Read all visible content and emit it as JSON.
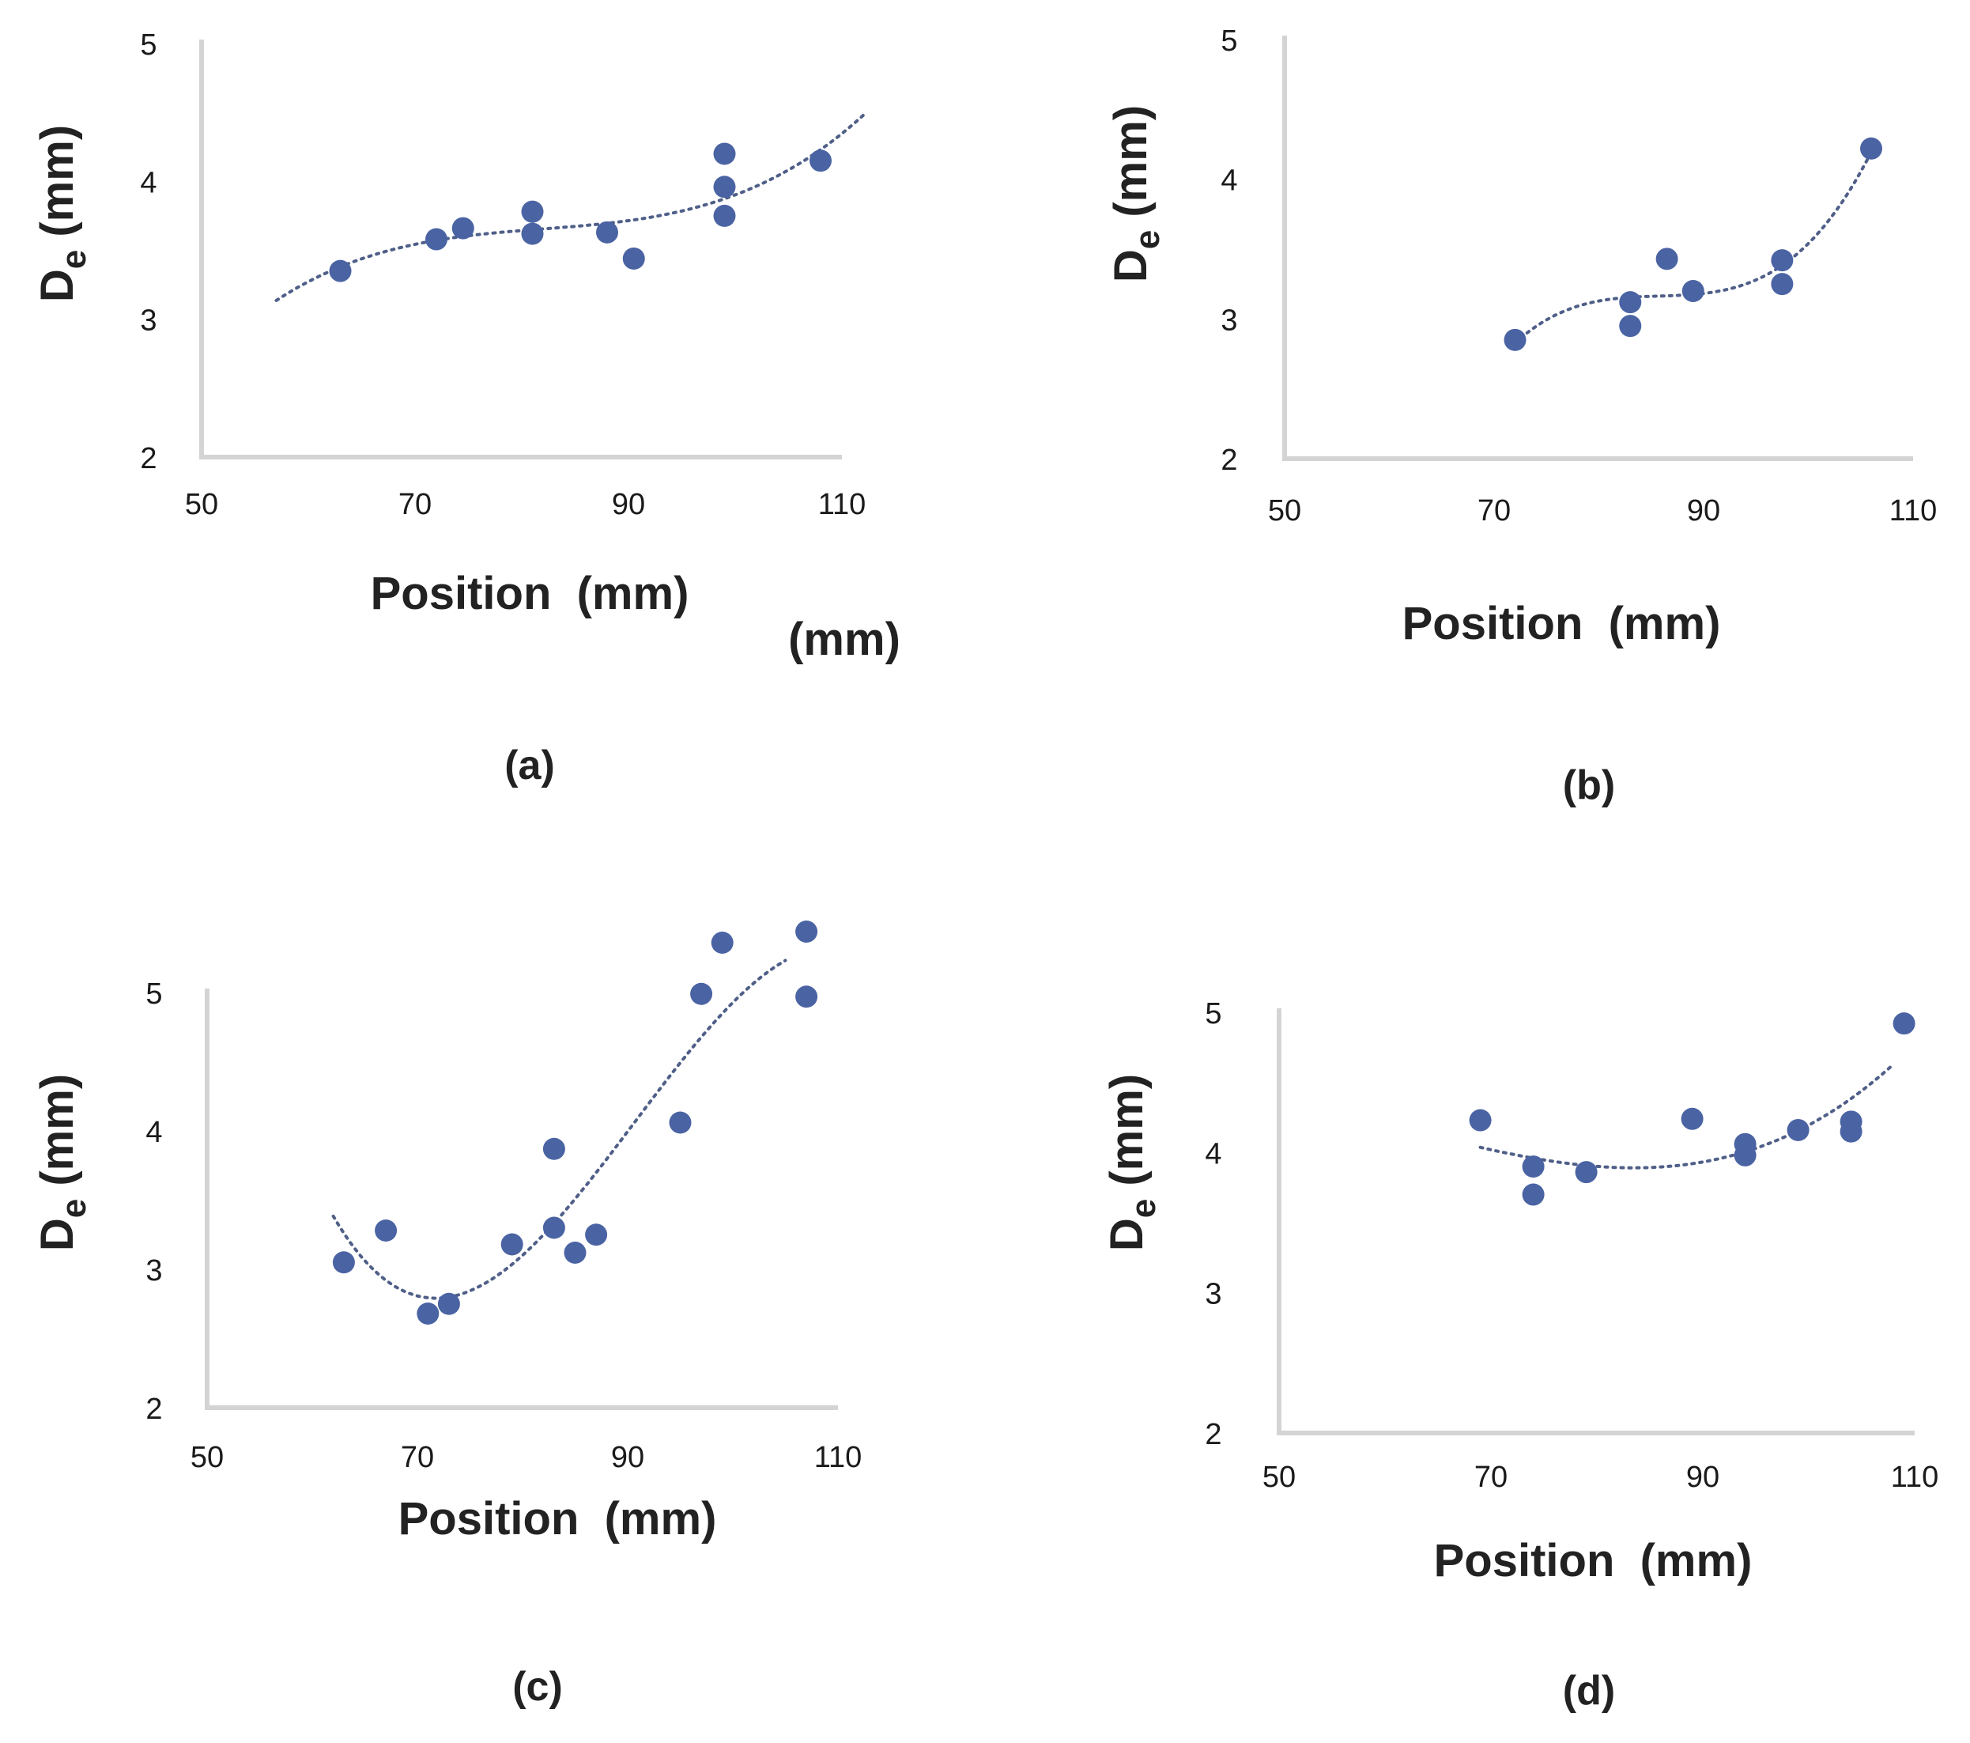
{
  "extra_label": "(mm)",
  "chart_data": [
    {
      "type": "scatter",
      "panel_label": "(a)",
      "xlabel": "Position  (mm)",
      "ylabel_main": "D",
      "ylabel_sub": "e",
      "ylabel_unit": " (mm)",
      "xlim": [
        50,
        110
      ],
      "ylim": [
        2,
        5
      ],
      "xticks": [
        50,
        70,
        90,
        110
      ],
      "yticks": [
        2,
        3,
        4,
        5
      ],
      "points": [
        [
          63,
          3.35
        ],
        [
          72,
          3.58
        ],
        [
          74.5,
          3.66
        ],
        [
          81,
          3.78
        ],
        [
          81,
          3.62
        ],
        [
          88,
          3.63
        ],
        [
          90.5,
          3.44
        ],
        [
          99,
          4.2
        ],
        [
          99,
          3.96
        ],
        [
          99,
          3.75
        ],
        [
          108,
          4.15
        ]
      ],
      "trend": {
        "kind": "polynomial",
        "x_range": [
          57,
          112
        ]
      }
    },
    {
      "type": "scatter",
      "panel_label": "(b)",
      "xlabel": "Position  (mm)",
      "ylabel_main": "D",
      "ylabel_sub": "e",
      "ylabel_unit": " (mm)",
      "xlim": [
        50,
        110
      ],
      "ylim": [
        2,
        5
      ],
      "xticks": [
        50,
        70,
        90,
        110
      ],
      "yticks": [
        2,
        3,
        4,
        5
      ],
      "points": [
        [
          72,
          2.85
        ],
        [
          83,
          3.12
        ],
        [
          83,
          2.95
        ],
        [
          86.5,
          3.43
        ],
        [
          89,
          3.2
        ],
        [
          97.5,
          3.42
        ],
        [
          97.5,
          3.25
        ],
        [
          106,
          4.22
        ]
      ],
      "trend": {
        "kind": "polynomial",
        "x_range": [
          72,
          106
        ]
      }
    },
    {
      "type": "scatter",
      "panel_label": "(c)",
      "xlabel": "Position  (mm)",
      "ylabel_main": "D",
      "ylabel_sub": "e",
      "ylabel_unit": " (mm)",
      "xlim": [
        50,
        110
      ],
      "ylim": [
        2,
        5
      ],
      "xticks": [
        50,
        70,
        90,
        110
      ],
      "yticks": [
        2,
        3,
        4,
        5
      ],
      "points": [
        [
          63,
          3.05
        ],
        [
          67,
          3.28
        ],
        [
          71,
          2.68
        ],
        [
          73,
          2.75
        ],
        [
          79,
          3.18
        ],
        [
          83,
          3.3
        ],
        [
          83,
          3.87
        ],
        [
          85,
          3.12
        ],
        [
          87,
          3.25
        ],
        [
          95,
          4.06
        ],
        [
          97,
          4.99
        ],
        [
          99,
          5.36
        ],
        [
          107,
          5.44
        ],
        [
          107,
          4.97
        ]
      ],
      "trend": {
        "kind": "polynomial",
        "x_range": [
          62,
          105
        ]
      }
    },
    {
      "type": "scatter",
      "panel_label": "(d)",
      "xlabel": "Position  (mm)",
      "ylabel_main": "D",
      "ylabel_sub": "e",
      "ylabel_unit": " (mm)",
      "xlim": [
        50,
        110
      ],
      "ylim": [
        2,
        5
      ],
      "xticks": [
        50,
        70,
        90,
        110
      ],
      "yticks": [
        2,
        3,
        4,
        5
      ],
      "points": [
        [
          69,
          4.23
        ],
        [
          74,
          3.9
        ],
        [
          74,
          3.7
        ],
        [
          79,
          3.86
        ],
        [
          89,
          4.24
        ],
        [
          94,
          4.06
        ],
        [
          94,
          3.98
        ],
        [
          99,
          4.16
        ],
        [
          104,
          4.22
        ],
        [
          104,
          4.15
        ],
        [
          109,
          4.92
        ]
      ],
      "trend": {
        "kind": "polynomial",
        "x_range": [
          69,
          108
        ]
      }
    }
  ]
}
